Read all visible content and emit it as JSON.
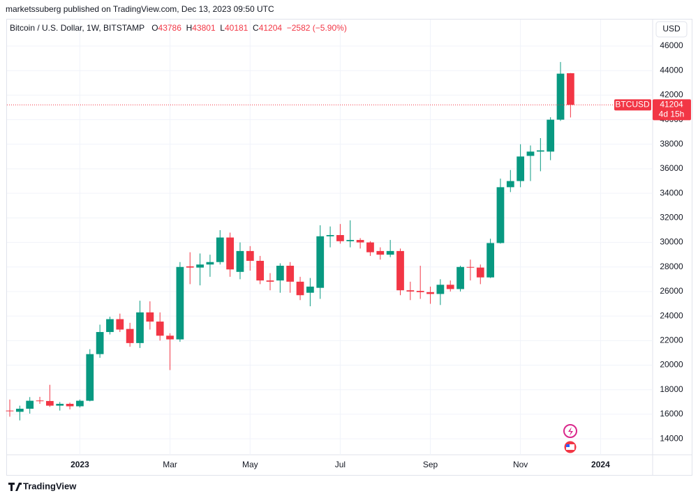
{
  "header": {
    "published": "marketssuberg published on TradingView.com, Dec 13, 2023 09:50 UTC",
    "currency_button": "USD",
    "footer_brand": "TradingView"
  },
  "chart_data": {
    "type": "candlestick",
    "title": "Bitcoin / U.S. Dollar, 1W, BITSTAMP",
    "ohlc_labels": [
      "O",
      "H",
      "L",
      "C"
    ],
    "change_label": "−2582 (−5.90%)",
    "symbol_tag": "BTCUSD",
    "countdown": "4d 15h",
    "up_color": "#089981",
    "down_color": "#f23645",
    "x": [
      0,
      1,
      2,
      3,
      4,
      5,
      6,
      7,
      8,
      9,
      10,
      11,
      12,
      13,
      14,
      15,
      16,
      17,
      18,
      19,
      20,
      21,
      22,
      23,
      24,
      25,
      26,
      27,
      28,
      29,
      30,
      31,
      32,
      33,
      34,
      35,
      36,
      37,
      38,
      39,
      40,
      41,
      42,
      43,
      44,
      45,
      46,
      47,
      48,
      49,
      50,
      51,
      52,
      53,
      54,
      55,
      56
    ],
    "open": [
      16300,
      16200,
      16450,
      17120,
      17080,
      16700,
      16850,
      16650,
      17100,
      20900,
      22700,
      23750,
      22950,
      21800,
      24300,
      23550,
      22400,
      22100,
      28050,
      27950,
      28200,
      28400,
      30400,
      27600,
      29300,
      28500,
      26900,
      26900,
      28100,
      26800,
      25900,
      26300,
      30500,
      30600,
      30100,
      30200,
      30000,
      29300,
      29000,
      29300,
      26100,
      26050,
      25950,
      25800,
      26550,
      26200,
      28000,
      27950,
      27150,
      29950,
      34500,
      35000,
      37050,
      37400,
      37400,
      40000,
      43786
    ],
    "high": [
      17200,
      16700,
      17400,
      17420,
      18400,
      17000,
      16950,
      17200,
      21300,
      23300,
      23950,
      24200,
      23450,
      25250,
      25200,
      24300,
      22600,
      28400,
      29200,
      29100,
      29000,
      31000,
      30800,
      30000,
      29700,
      28900,
      27500,
      28300,
      28400,
      27200,
      27100,
      31400,
      31300,
      31500,
      31800,
      30350,
      30100,
      29600,
      30200,
      29500,
      26800,
      28100,
      26400,
      27000,
      26900,
      28100,
      28600,
      28200,
      30300,
      35200,
      35900,
      38000,
      37900,
      38500,
      40200,
      44700,
      43801
    ],
    "low": [
      15800,
      15500,
      16050,
      16850,
      16600,
      16300,
      16400,
      16550,
      17050,
      20600,
      22500,
      22700,
      21500,
      21400,
      22900,
      22000,
      19600,
      21900,
      26600,
      26500,
      27200,
      28200,
      27200,
      27000,
      27700,
      26600,
      26100,
      25900,
      25900,
      25300,
      24800,
      25400,
      29600,
      29900,
      29600,
      29500,
      28900,
      28600,
      28800,
      25700,
      25300,
      25400,
      25000,
      24900,
      26000,
      26000,
      26900,
      26600,
      27100,
      29900,
      34100,
      34500,
      35000,
      35800,
      36700,
      39900,
      40181
    ],
    "close": [
      16250,
      16450,
      17100,
      17080,
      16700,
      16850,
      16650,
      17100,
      20900,
      22700,
      23750,
      22900,
      21800,
      24300,
      23550,
      22400,
      22100,
      28000,
      27950,
      28200,
      28400,
      30400,
      27800,
      29300,
      28500,
      26900,
      26800,
      28100,
      26800,
      25700,
      26400,
      30500,
      30600,
      30100,
      30200,
      30000,
      29200,
      29000,
      29300,
      26100,
      26000,
      25950,
      25800,
      26550,
      26200,
      28000,
      27950,
      27150,
      29950,
      34500,
      35000,
      37000,
      37400,
      37500,
      40000,
      43750,
      41204
    ],
    "xlim": [
      -0.28,
      64.2
    ],
    "xticks": [
      {
        "value": 7,
        "label": "2023"
      },
      {
        "value": 16,
        "label": "Mar"
      },
      {
        "value": 24,
        "label": "May"
      },
      {
        "value": 33,
        "label": "Jul"
      },
      {
        "value": 42,
        "label": "Sep"
      },
      {
        "value": 51,
        "label": "Nov"
      },
      {
        "value": 59,
        "label": "2024"
      }
    ],
    "ylim": [
      12700,
      48160
    ],
    "yticks": [
      14000,
      16000,
      18000,
      20000,
      22000,
      24000,
      26000,
      28000,
      30000,
      32000,
      34000,
      36000,
      38000,
      40000,
      42000,
      44000,
      46000
    ],
    "grid": true
  }
}
